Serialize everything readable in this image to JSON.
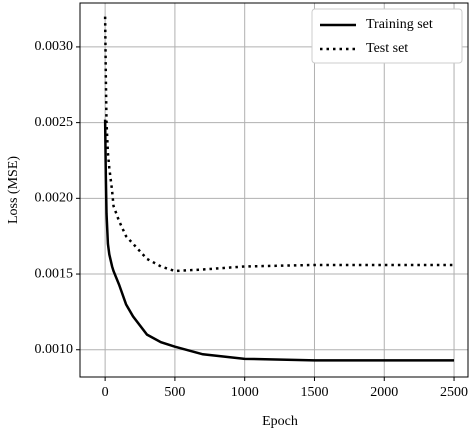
{
  "chart_data": {
    "type": "line",
    "xlabel": "Epoch",
    "ylabel": "Loss (MSE)",
    "x": [
      0,
      5,
      10,
      20,
      30,
      50,
      60,
      100,
      150,
      200,
      300,
      400,
      500,
      700,
      1000,
      1500,
      2000,
      2500
    ],
    "series": [
      {
        "name": "Training set",
        "color": "#000000",
        "style": "solid",
        "values": [
          0.00252,
          0.00215,
          0.0019,
          0.0017,
          0.00163,
          0.00155,
          0.00152,
          0.00143,
          0.0013,
          0.00122,
          0.0011,
          0.00105,
          0.00102,
          0.00097,
          0.00094,
          0.00093,
          0.00093,
          0.00093
        ]
      },
      {
        "name": "Test set",
        "color": "#000000",
        "style": "dotted",
        "values": [
          0.0032,
          0.0028,
          0.0025,
          0.0023,
          0.0022,
          0.00205,
          0.00195,
          0.00185,
          0.00175,
          0.0017,
          0.0016,
          0.00155,
          0.00152,
          0.00153,
          0.00155,
          0.00156,
          0.00156,
          0.00156
        ]
      }
    ],
    "xlim": [
      -180,
      2600
    ],
    "xticks": [
      0,
      500,
      1000,
      1500,
      2000,
      2500
    ],
    "ylim": [
      0.00082,
      0.00329
    ],
    "yticks": [
      {
        "value": 0.001,
        "label": "0.0010"
      },
      {
        "value": 0.0015,
        "label": "0.0015"
      },
      {
        "value": 0.002,
        "label": "0.0020"
      },
      {
        "value": 0.0025,
        "label": "0.0025"
      },
      {
        "value": 0.003,
        "label": "0.0030"
      }
    ],
    "grid": true,
    "legend": "upper right"
  }
}
